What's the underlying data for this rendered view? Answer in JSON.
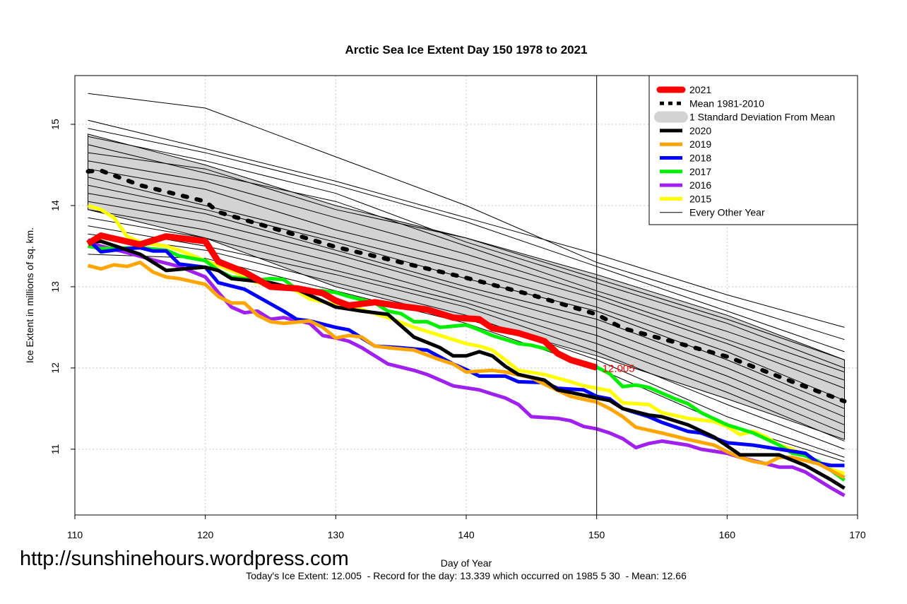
{
  "chart_data": {
    "type": "line",
    "title": "Arctic Sea Ice Extent Day 150 1978 to 2021",
    "xlabel": "Day of Year",
    "ylabel": "Ice Extent in millions of sq. km.",
    "xlim": [
      110,
      170
    ],
    "ylim": [
      10.19,
      15.6
    ],
    "xticks": [
      "110",
      "120",
      "130",
      "140",
      "150",
      "160",
      "170"
    ],
    "yticks": [
      "11",
      "12",
      "13",
      "14",
      "15"
    ],
    "grid": true,
    "legend_position": "top-right",
    "marker_day": 150,
    "annotation": "12.005",
    "footer": "Today's Ice Extent: 12.005  - Record for the day: 13.339 which occurred on 1985 5 30  - Mean: 12.66",
    "watermark": "http://sunshinehours.wordpress.com",
    "sd_band": {
      "name": "1 Standard Deviation From Mean",
      "color": "#d3d3d3",
      "x": [
        111,
        120,
        130,
        140,
        150,
        160,
        169
      ],
      "upper": [
        14.88,
        14.5,
        14.0,
        13.6,
        13.15,
        12.65,
        12.1
      ],
      "lower": [
        13.95,
        13.6,
        13.0,
        12.6,
        12.15,
        11.62,
        11.12
      ]
    },
    "mean": {
      "name": "Mean 1981-2010",
      "color": "#000000",
      "x": [
        111,
        112,
        115,
        120,
        121,
        125,
        130,
        135,
        140,
        145,
        150,
        152,
        155,
        160,
        165,
        169
      ],
      "y": [
        14.42,
        14.43,
        14.25,
        14.05,
        13.92,
        13.73,
        13.49,
        13.3,
        13.11,
        12.9,
        12.66,
        12.49,
        12.36,
        12.14,
        11.83,
        11.59
      ]
    },
    "series": [
      {
        "name": "2021",
        "color": "#ff0000",
        "width": 9,
        "x": [
          111,
          112,
          115,
          117,
          120,
          121,
          123,
          125,
          127,
          129,
          130,
          131,
          133,
          135,
          137,
          139,
          141,
          142,
          144,
          146,
          147,
          148,
          150
        ],
        "y": [
          13.53,
          13.63,
          13.52,
          13.62,
          13.56,
          13.31,
          13.18,
          13.0,
          12.98,
          12.92,
          12.83,
          12.77,
          12.81,
          12.76,
          12.72,
          12.62,
          12.6,
          12.49,
          12.43,
          12.33,
          12.18,
          12.1,
          12.005
        ]
      },
      {
        "name": "2020",
        "color": "#000000",
        "width": 5,
        "x": [
          111,
          112,
          115,
          117,
          119,
          120,
          121,
          122,
          125,
          127,
          130,
          132,
          134,
          136,
          138,
          139,
          140,
          141,
          142,
          143,
          144,
          146,
          147,
          148,
          150,
          151,
          152,
          154,
          155,
          157,
          159,
          161,
          164,
          166,
          168,
          169
        ],
        "y": [
          13.55,
          13.56,
          13.4,
          13.2,
          13.23,
          13.24,
          13.2,
          13.1,
          13.05,
          12.97,
          12.75,
          12.7,
          12.66,
          12.38,
          12.25,
          12.15,
          12.15,
          12.2,
          12.15,
          12.02,
          11.92,
          11.85,
          11.73,
          11.7,
          11.63,
          11.6,
          11.5,
          11.42,
          11.4,
          11.3,
          11.15,
          10.93,
          10.93,
          10.8,
          10.62,
          10.52
        ]
      },
      {
        "name": "2019",
        "color": "#ffa500",
        "width": 5,
        "x": [
          111,
          112,
          113,
          114,
          115,
          116,
          117,
          118,
          120,
          121,
          122,
          123,
          124,
          125,
          126,
          128,
          129,
          130,
          131,
          132,
          133,
          134,
          136,
          138,
          139,
          140,
          142,
          143,
          145,
          146,
          148,
          150,
          151,
          152,
          153,
          155,
          157,
          159,
          160,
          161,
          162,
          163,
          164,
          165,
          167,
          169
        ],
        "y": [
          13.26,
          13.22,
          13.27,
          13.25,
          13.3,
          13.18,
          13.12,
          13.1,
          13.03,
          12.88,
          12.8,
          12.8,
          12.65,
          12.57,
          12.55,
          12.58,
          12.5,
          12.37,
          12.4,
          12.38,
          12.27,
          12.25,
          12.22,
          12.1,
          12.05,
          11.95,
          11.97,
          11.95,
          11.88,
          11.8,
          11.65,
          11.58,
          11.5,
          11.4,
          11.27,
          11.2,
          11.12,
          11.05,
          10.97,
          10.9,
          10.85,
          10.82,
          10.9,
          10.9,
          10.82,
          10.65
        ]
      },
      {
        "name": "2018",
        "color": "#0000ff",
        "width": 5,
        "x": [
          111,
          112,
          114,
          115,
          116,
          117,
          118,
          120,
          121,
          123,
          124,
          126,
          127,
          128,
          130,
          131,
          133,
          135,
          137,
          139,
          140,
          141,
          143,
          144,
          146,
          147,
          149,
          150,
          151,
          152,
          154,
          155,
          157,
          158,
          160,
          162,
          164,
          166,
          167,
          168,
          169
        ],
        "y": [
          13.58,
          13.43,
          13.47,
          13.48,
          13.44,
          13.44,
          13.28,
          13.24,
          13.05,
          12.97,
          12.88,
          12.7,
          12.6,
          12.58,
          12.5,
          12.47,
          12.27,
          12.25,
          12.22,
          12.05,
          11.98,
          11.9,
          11.9,
          11.83,
          11.82,
          11.75,
          11.73,
          11.65,
          11.62,
          11.5,
          11.4,
          11.33,
          11.22,
          11.2,
          11.08,
          11.05,
          11.0,
          10.95,
          10.83,
          10.8,
          10.8
        ]
      },
      {
        "name": "2017",
        "color": "#00ee00",
        "width": 5,
        "x": [
          111,
          112,
          115,
          117,
          118,
          120,
          121,
          122,
          124,
          125,
          126,
          127,
          129,
          130,
          131,
          133,
          134,
          135,
          136,
          137,
          138,
          140,
          141,
          142,
          144,
          145,
          147,
          148,
          150,
          151,
          152,
          153,
          154,
          156,
          157,
          158,
          160,
          162,
          164,
          165,
          166,
          167,
          169
        ],
        "y": [
          13.5,
          13.47,
          13.48,
          13.45,
          13.38,
          13.32,
          13.2,
          13.12,
          13.08,
          13.1,
          13.09,
          12.97,
          12.95,
          12.93,
          12.88,
          12.8,
          12.7,
          12.67,
          12.57,
          12.57,
          12.5,
          12.53,
          12.47,
          12.4,
          12.3,
          12.28,
          12.2,
          12.1,
          12.01,
          11.93,
          11.77,
          11.79,
          11.76,
          11.62,
          11.56,
          11.45,
          11.3,
          11.2,
          11.05,
          10.95,
          10.92,
          10.85,
          10.62
        ]
      },
      {
        "name": "2016",
        "color": "#a020f0",
        "width": 5,
        "x": [
          111,
          112,
          114,
          116,
          118,
          120,
          121,
          122,
          123,
          124,
          125,
          126,
          128,
          129,
          130,
          131,
          132,
          133,
          134,
          136,
          137,
          138,
          139,
          141,
          142,
          143,
          144,
          145,
          147,
          148,
          149,
          150,
          151,
          152,
          153,
          154,
          155,
          157,
          158,
          160,
          161,
          163,
          164,
          165,
          166,
          167,
          168,
          169
        ],
        "y": [
          13.55,
          13.5,
          13.42,
          13.33,
          13.25,
          13.12,
          12.93,
          12.75,
          12.68,
          12.7,
          12.6,
          12.62,
          12.55,
          12.4,
          12.37,
          12.33,
          12.25,
          12.15,
          12.05,
          11.97,
          11.92,
          11.85,
          11.78,
          11.73,
          11.68,
          11.63,
          11.55,
          11.4,
          11.38,
          11.35,
          11.28,
          11.25,
          11.2,
          11.13,
          11.02,
          11.07,
          11.1,
          11.05,
          11.0,
          10.95,
          10.9,
          10.82,
          10.78,
          10.78,
          10.72,
          10.62,
          10.52,
          10.43
        ]
      },
      {
        "name": "2015",
        "color": "#ffff00",
        "width": 5,
        "x": [
          111,
          112,
          113,
          114,
          115,
          116,
          117,
          118,
          120,
          122,
          124,
          126,
          127,
          128,
          130,
          132,
          134,
          136,
          138,
          140,
          141,
          142,
          143,
          144,
          146,
          148,
          149,
          150,
          151,
          152,
          154,
          155,
          157,
          159,
          160,
          161,
          162,
          163,
          164,
          165,
          166,
          168,
          169
        ],
        "y": [
          14.0,
          13.95,
          13.85,
          13.62,
          13.55,
          13.52,
          13.5,
          13.45,
          13.32,
          13.2,
          13.05,
          13.0,
          12.95,
          12.85,
          12.78,
          12.72,
          12.62,
          12.5,
          12.4,
          12.3,
          12.27,
          12.22,
          12.1,
          11.97,
          11.92,
          11.83,
          11.78,
          11.75,
          11.72,
          11.57,
          11.55,
          11.45,
          11.38,
          11.34,
          11.28,
          11.18,
          11.22,
          11.15,
          11.05,
          11.0,
          10.92,
          10.75,
          10.7
        ]
      }
    ],
    "other_years": {
      "name": "Every Other Year",
      "color": "#000000",
      "x": [
        111,
        120,
        130,
        140,
        150,
        160,
        169
      ],
      "lines": [
        [
          15.38,
          15.2,
          14.6,
          14.0,
          13.3,
          12.8,
          12.35
        ],
        [
          15.05,
          14.7,
          14.3,
          13.85,
          13.4,
          12.9,
          12.5
        ],
        [
          14.95,
          14.65,
          14.25,
          13.8,
          13.25,
          12.7,
          12.2
        ],
        [
          14.85,
          14.55,
          14.15,
          13.55,
          13.05,
          12.55,
          12.0
        ],
        [
          14.75,
          14.4,
          14.05,
          13.5,
          12.95,
          12.45,
          11.95
        ],
        [
          14.65,
          14.45,
          13.95,
          13.6,
          13.1,
          12.6,
          12.1
        ],
        [
          14.55,
          14.3,
          13.85,
          13.4,
          12.9,
          12.35,
          11.85
        ],
        [
          14.45,
          14.2,
          13.7,
          13.3,
          12.85,
          12.3,
          11.75
        ],
        [
          14.35,
          14.0,
          13.6,
          13.2,
          12.75,
          12.2,
          11.6
        ],
        [
          14.25,
          13.95,
          13.55,
          13.1,
          12.7,
          12.1,
          11.5
        ],
        [
          14.15,
          13.9,
          13.45,
          13.0,
          12.6,
          12.0,
          11.4
        ],
        [
          14.05,
          13.8,
          13.4,
          12.95,
          12.5,
          11.9,
          11.3
        ],
        [
          13.95,
          13.7,
          13.3,
          12.85,
          12.4,
          11.8,
          11.2
        ],
        [
          13.85,
          13.6,
          13.2,
          12.8,
          12.3,
          11.7,
          11.1
        ],
        [
          13.75,
          13.5,
          13.15,
          12.75,
          12.2,
          11.55,
          11.0
        ],
        [
          13.65,
          13.45,
          13.05,
          12.65,
          12.1,
          11.4,
          10.9
        ],
        [
          13.4,
          13.35,
          12.95,
          12.55,
          12.0,
          11.3,
          10.85
        ]
      ]
    }
  }
}
